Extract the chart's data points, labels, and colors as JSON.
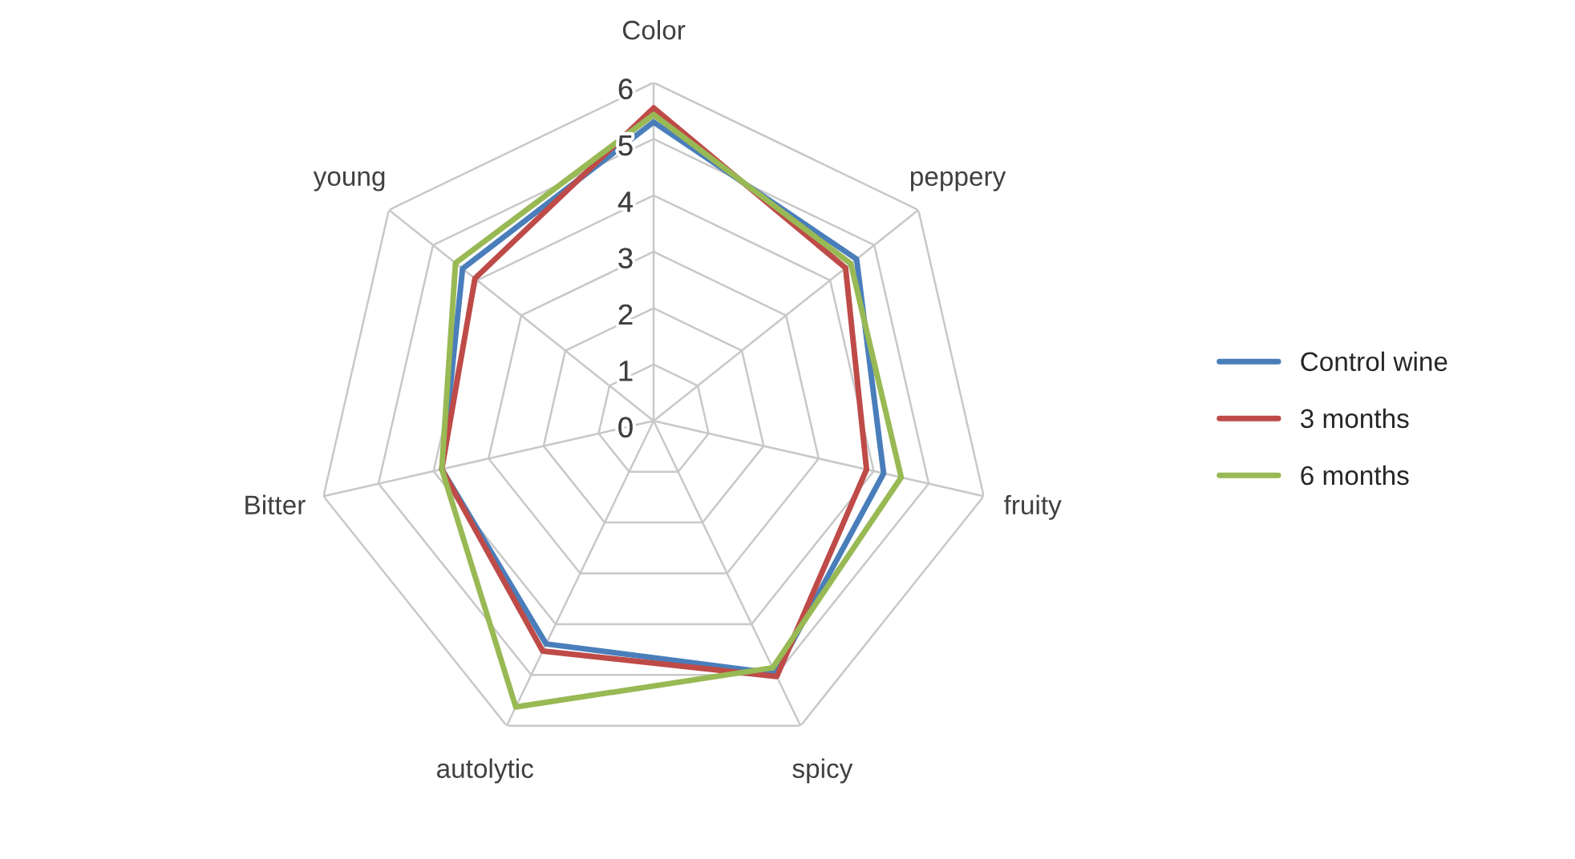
{
  "chart_data": {
    "type": "radar",
    "categories": [
      "Color",
      "peppery",
      "fruity",
      "spicy",
      "autolytic",
      "Bitter",
      "young"
    ],
    "series": [
      {
        "name": "Control wine",
        "color": "#4a7ebb",
        "values": [
          5.3,
          4.6,
          4.18,
          4.97,
          4.39,
          3.85,
          4.33
        ]
      },
      {
        "name": "3 months",
        "color": "#be4b48",
        "values": [
          5.55,
          4.35,
          3.87,
          5.03,
          4.53,
          3.85,
          4.05
        ]
      },
      {
        "name": "6 months",
        "color": "#98b954",
        "values": [
          5.43,
          4.47,
          4.5,
          4.86,
          5.63,
          3.85,
          4.49
        ]
      }
    ],
    "ylim": [
      0,
      6
    ],
    "yticks": [
      0,
      1,
      2,
      3,
      4,
      5,
      6
    ],
    "grid": true,
    "legend": "right"
  }
}
